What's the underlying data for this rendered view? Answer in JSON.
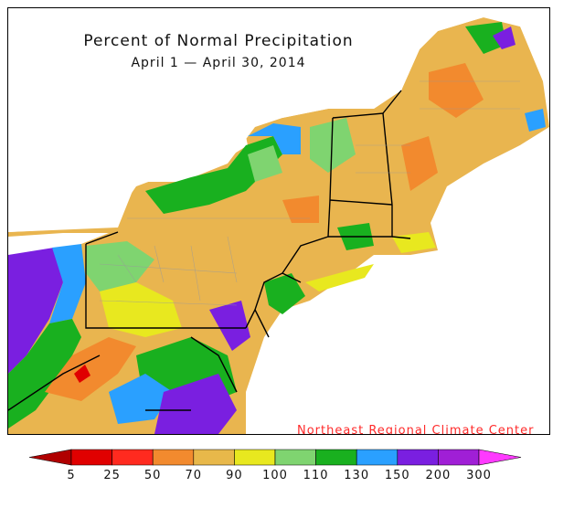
{
  "map": {
    "title": "Percent of Normal Precipitation",
    "subtitle": "April 1 — April 30, 2014",
    "credit": "Northeast Regional Climate Center"
  },
  "legend": {
    "ticks": [
      "5",
      "25",
      "50",
      "70",
      "90",
      "100",
      "110",
      "130",
      "150",
      "200",
      "300"
    ],
    "bins": [
      {
        "from": "0",
        "to": "5",
        "color": "#b00000"
      },
      {
        "from": "5",
        "to": "25",
        "color": "#e00000"
      },
      {
        "from": "25",
        "to": "50",
        "color": "#ff2a1f"
      },
      {
        "from": "50",
        "to": "70",
        "color": "#f28a2e"
      },
      {
        "from": "70",
        "to": "90",
        "color": "#e8b84a"
      },
      {
        "from": "90",
        "to": "100",
        "color": "#e8e81f"
      },
      {
        "from": "100",
        "to": "110",
        "color": "#7fd470"
      },
      {
        "from": "110",
        "to": "130",
        "color": "#19b01f"
      },
      {
        "from": "130",
        "to": "150",
        "color": "#2aa0ff"
      },
      {
        "from": "150",
        "to": "200",
        "color": "#7a1fe0"
      },
      {
        "from": "200",
        "to": "300",
        "color": "#a01fd6"
      },
      {
        "from": "300",
        "to": ">",
        "color": "#ff3aff"
      }
    ]
  }
}
